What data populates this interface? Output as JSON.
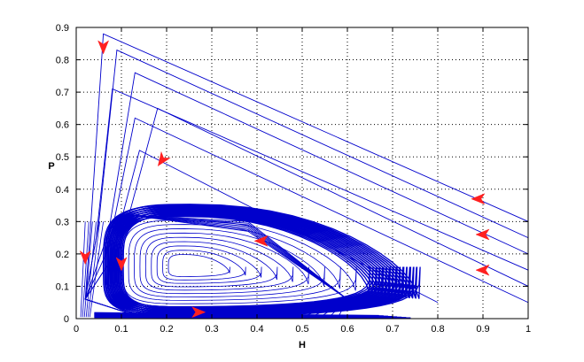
{
  "chart_data": {
    "type": "line",
    "title": "",
    "xlabel": "H",
    "ylabel": "P",
    "xlim": [
      0,
      1
    ],
    "ylim": [
      0,
      0.9
    ],
    "x_ticks": [
      "0",
      "0.1",
      "0.2",
      "0.3",
      "0.4",
      "0.5",
      "0.6",
      "0.7",
      "0.8",
      "0.9",
      "1"
    ],
    "y_ticks": [
      "0",
      "0.1",
      "0.2",
      "0.3",
      "0.4",
      "0.5",
      "0.6",
      "0.7",
      "0.8",
      "0.9"
    ],
    "grid": true,
    "grid_style": "dotted",
    "line_color": "#0000cc",
    "arrow_color": "#ff2020",
    "trajectories": [
      {
        "start": [
          1.0,
          0.3
        ],
        "apex": [
          0.06,
          0.88
        ]
      },
      {
        "start": [
          1.0,
          0.25
        ],
        "apex": [
          0.09,
          0.83
        ]
      },
      {
        "start": [
          1.0,
          0.2
        ],
        "apex": [
          0.13,
          0.76
        ]
      },
      {
        "start": [
          1.0,
          0.15
        ],
        "apex": [
          0.08,
          0.71
        ]
      },
      {
        "start": [
          1.0,
          0.1
        ],
        "apex": [
          0.18,
          0.65
        ]
      },
      {
        "start": [
          1.0,
          0.05
        ],
        "apex": [
          0.13,
          0.62
        ]
      },
      {
        "start": [
          0.8,
          0.05
        ],
        "apex": [
          0.14,
          0.52
        ]
      }
    ],
    "limit_cycle": {
      "h_min": 0.06,
      "h_max": 0.74,
      "p_min": 0.01,
      "p_max": 0.35
    },
    "arrows": [
      {
        "x": 0.06,
        "y": 0.84,
        "dir": "down"
      },
      {
        "x": 0.19,
        "y": 0.49,
        "dir": "down-left"
      },
      {
        "x": 0.89,
        "y": 0.37,
        "dir": "left"
      },
      {
        "x": 0.9,
        "y": 0.26,
        "dir": "left"
      },
      {
        "x": 0.9,
        "y": 0.15,
        "dir": "left"
      },
      {
        "x": 0.41,
        "y": 0.24,
        "dir": "left"
      },
      {
        "x": 0.1,
        "y": 0.17,
        "dir": "down"
      },
      {
        "x": 0.02,
        "y": 0.19,
        "dir": "down"
      },
      {
        "x": 0.27,
        "y": 0.02,
        "dir": "right"
      }
    ]
  }
}
